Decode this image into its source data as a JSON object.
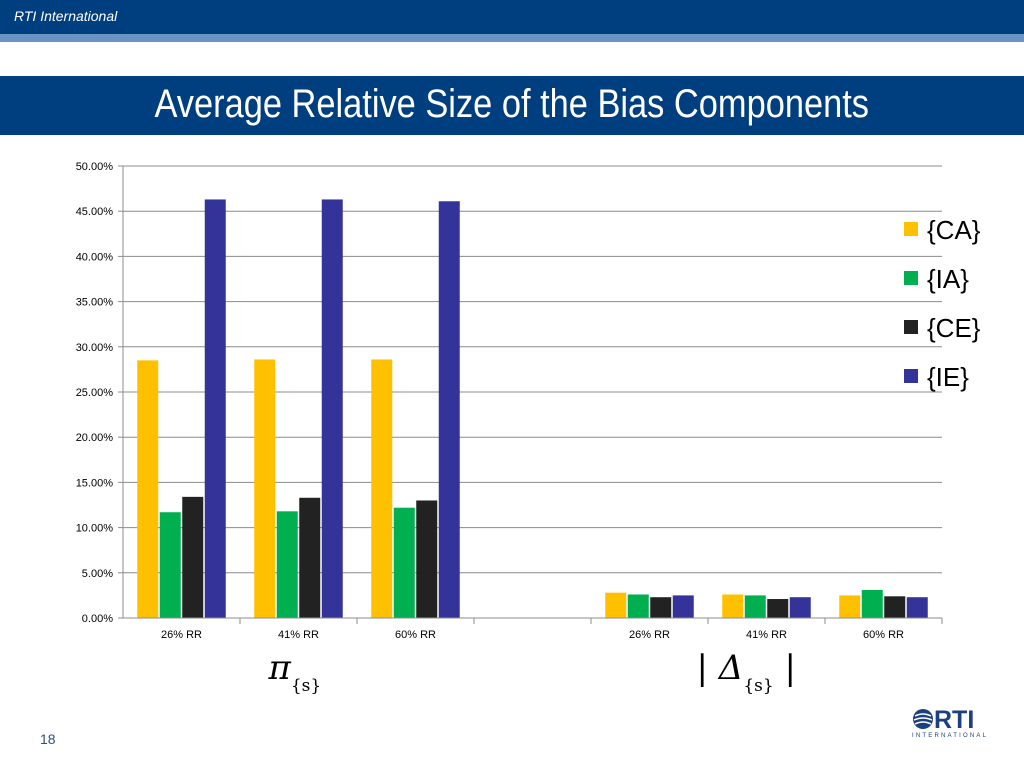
{
  "header": {
    "org": "RTI International"
  },
  "slide": {
    "title": "Average Relative Size of the Bias Components",
    "page_number": "18"
  },
  "logo": {
    "text": "RTI",
    "subtext": "INTERNATIONAL"
  },
  "group_symbols": [
    "π{s}",
    "| Δ{s} |"
  ],
  "chart_data": {
    "type": "bar",
    "categories": [
      "26% RR",
      "41% RR",
      "60% RR",
      "",
      "26% RR",
      "41% RR",
      "60% RR"
    ],
    "series": [
      {
        "name": "{CA}",
        "color": "#ffc000",
        "values": [
          28.5,
          28.6,
          28.6,
          null,
          2.8,
          2.6,
          2.5
        ]
      },
      {
        "name": "{IA}",
        "color": "#00b050",
        "values": [
          11.7,
          11.8,
          12.2,
          null,
          2.6,
          2.5,
          3.1
        ]
      },
      {
        "name": "{CE}",
        "color": "#222222",
        "values": [
          13.4,
          13.3,
          13.0,
          null,
          2.3,
          2.1,
          2.4
        ]
      },
      {
        "name": "{IE}",
        "color": "#333399",
        "values": [
          46.3,
          46.3,
          46.1,
          null,
          2.5,
          2.3,
          2.3
        ]
      }
    ],
    "ylim": [
      0,
      50
    ],
    "yticks": [
      "0.00%",
      "5.00%",
      "10.00%",
      "15.00%",
      "20.00%",
      "25.00%",
      "30.00%",
      "35.00%",
      "40.00%",
      "45.00%",
      "50.00%"
    ],
    "grid": true,
    "legend_position": "right"
  }
}
